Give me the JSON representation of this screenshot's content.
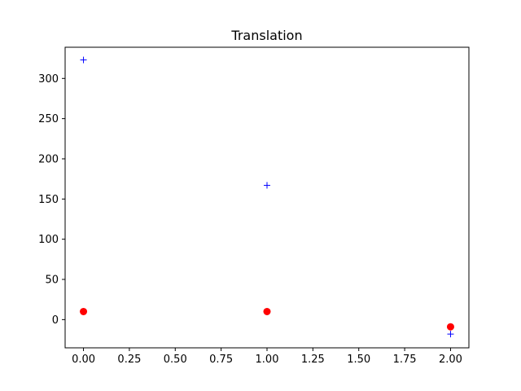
{
  "chart_data": {
    "type": "scatter",
    "title": "Translation",
    "xlabel": "",
    "ylabel": "",
    "xlim": [
      -0.1,
      2.1
    ],
    "ylim": [
      -35.1,
      338.8
    ],
    "x_ticks": [
      0.0,
      0.25,
      0.5,
      0.75,
      1.0,
      1.25,
      1.5,
      1.75,
      2.0
    ],
    "x_tick_labels": [
      "0.00",
      "0.25",
      "0.50",
      "0.75",
      "1.00",
      "1.25",
      "1.50",
      "1.75",
      "2.00"
    ],
    "y_ticks": [
      0,
      50,
      100,
      150,
      200,
      250,
      300
    ],
    "y_tick_labels": [
      "0",
      "50",
      "100",
      "150",
      "200",
      "250",
      "300"
    ],
    "grid": false,
    "series": [
      {
        "marker": "plus",
        "color": "#0000ff",
        "x": [
          0,
          1,
          2
        ],
        "y": [
          323,
          167,
          -18
        ]
      },
      {
        "marker": "circle",
        "color": "#ff0000",
        "x": [
          0,
          1,
          2
        ],
        "y": [
          10,
          10,
          -9
        ]
      }
    ]
  }
}
